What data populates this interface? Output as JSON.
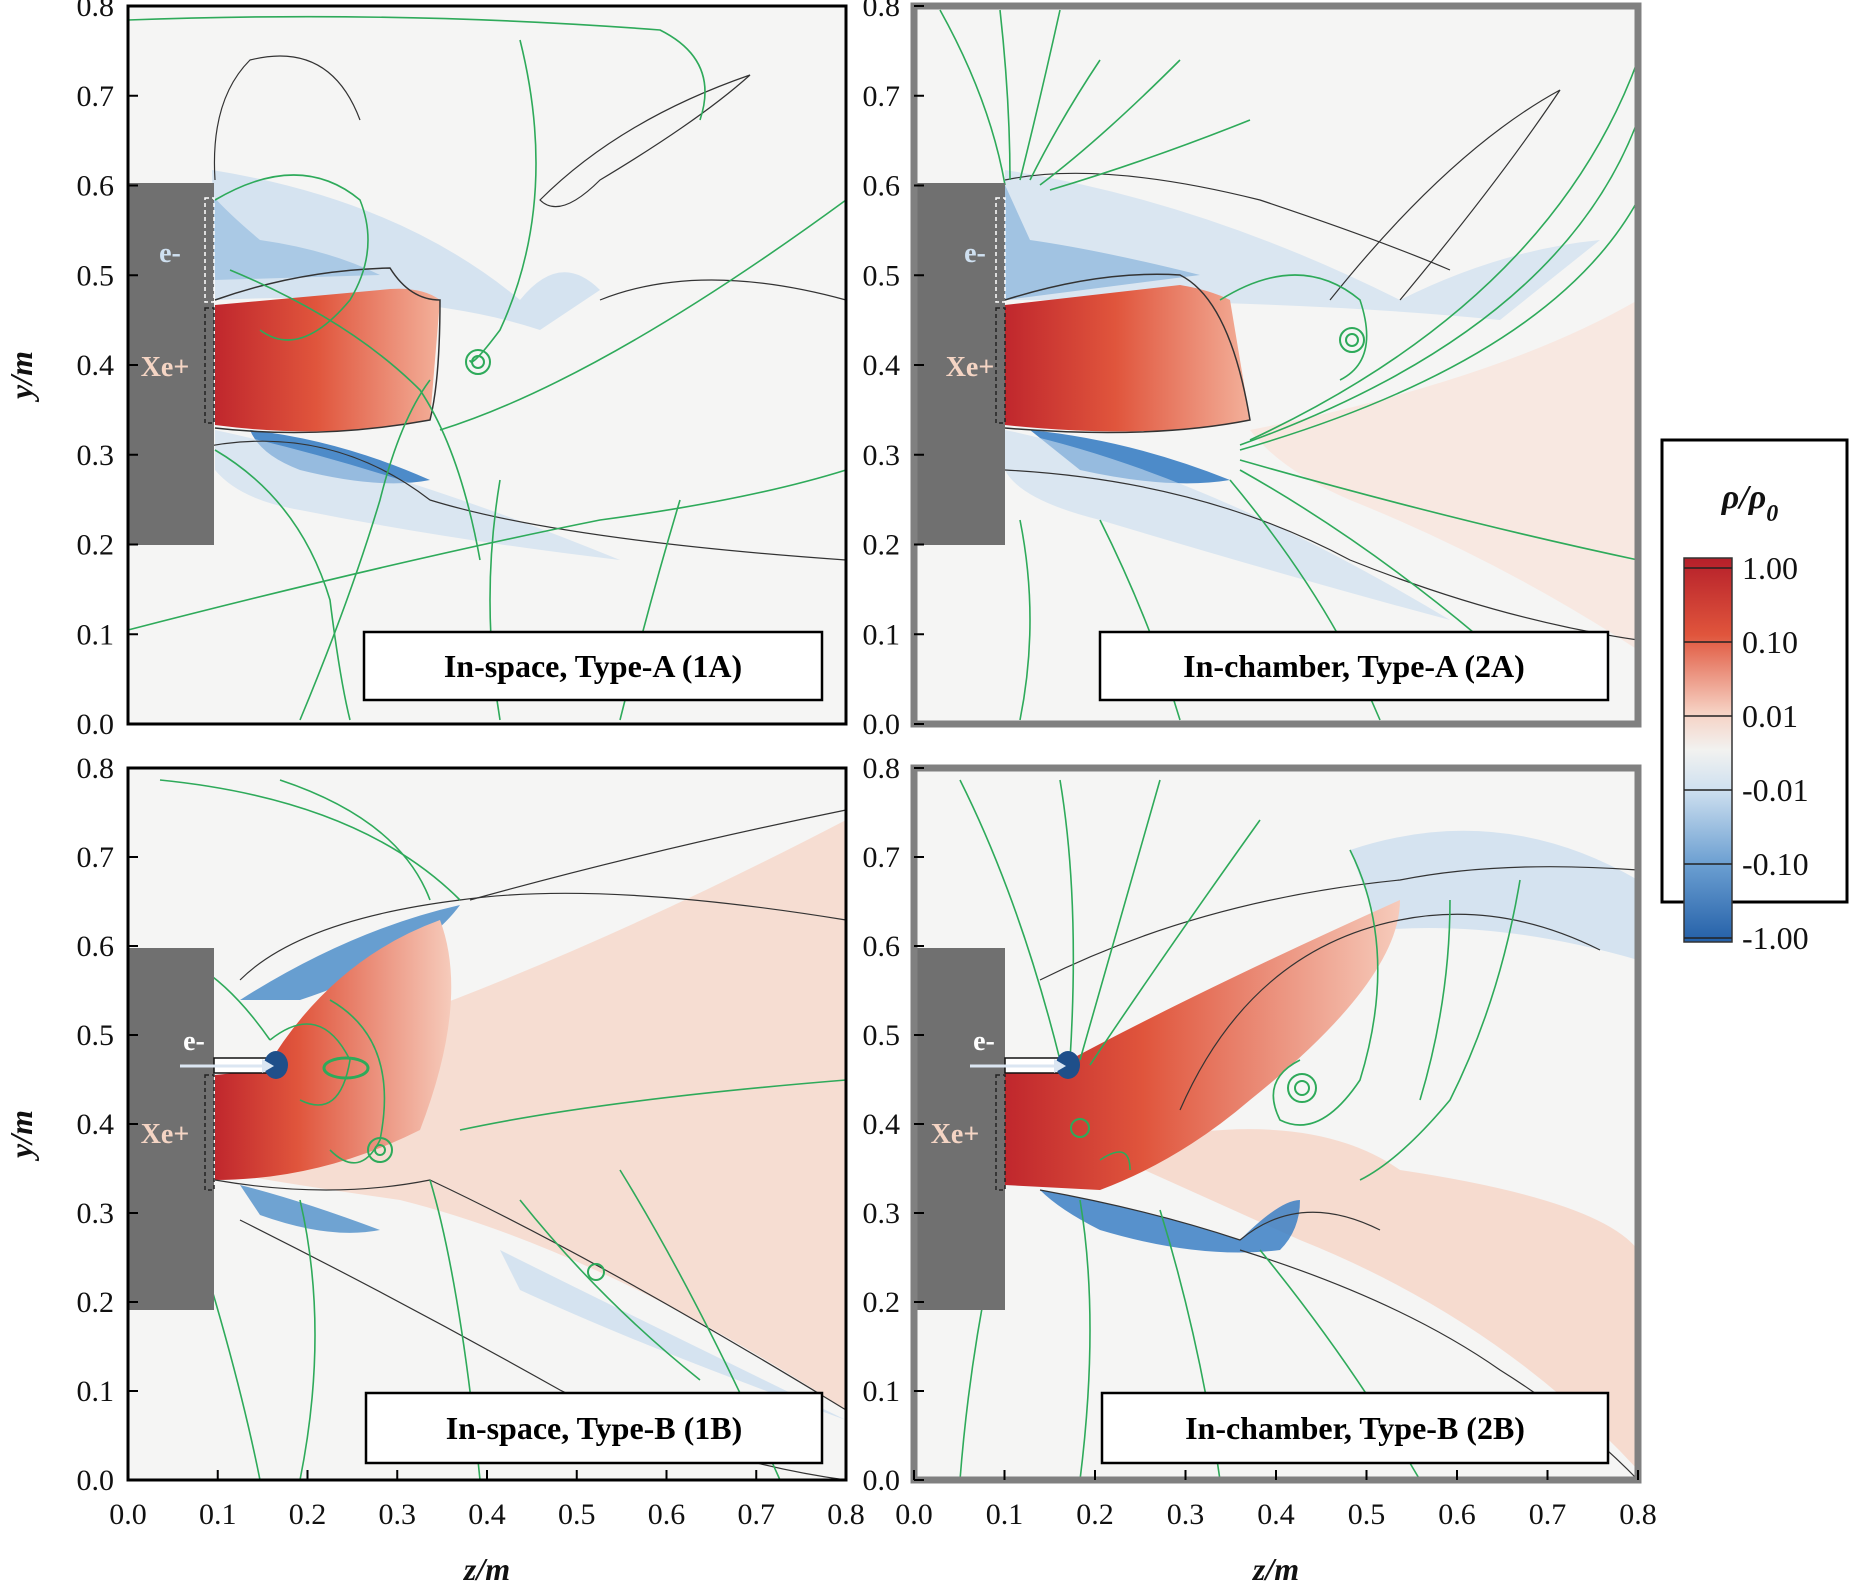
{
  "figure": {
    "x_axis_label": "z/m",
    "y_axis_label": "y/m",
    "x_ticks": [
      "0.0",
      "0.1",
      "0.2",
      "0.3",
      "0.4",
      "0.5",
      "0.6",
      "0.7",
      "0.8"
    ],
    "y_ticks": [
      "0.0",
      "0.1",
      "0.2",
      "0.3",
      "0.4",
      "0.5",
      "0.6",
      "0.7",
      "0.8"
    ],
    "panels": [
      {
        "id": "1A",
        "label": "In-space, Type-A (1A)",
        "electron_label": "e-",
        "ion_label": "Xe+",
        "frame_style": "black"
      },
      {
        "id": "2A",
        "label": "In-chamber, Type-A (2A)",
        "electron_label": "e-",
        "ion_label": "Xe+",
        "frame_style": "gray"
      },
      {
        "id": "1B",
        "label": "In-space, Type-B (1B)",
        "electron_label": "e-",
        "ion_label": "Xe+",
        "frame_style": "black"
      },
      {
        "id": "2B",
        "label": "In-chamber, Type-B (2B)",
        "electron_label": "e-",
        "ion_label": "Xe+",
        "frame_style": "gray"
      }
    ]
  },
  "colorbar": {
    "title": "ρ/ρ0",
    "title_main": "ρ/ρ",
    "title_sub": "0",
    "ticks": [
      "1.00",
      "0.10",
      "0.01",
      "-0.01",
      "-0.10",
      "-1.00"
    ],
    "colors": [
      "#c0272d",
      "#e8664a",
      "#f3b9a4",
      "#f2f2f0",
      "#c6dbef",
      "#2b6cb0"
    ]
  },
  "colors": {
    "streamline": "#2eaa5a",
    "contour": "#333333",
    "wall": "#707070",
    "positive": "#d9432f",
    "negative": "#3b7fc4",
    "frame_gray": "#808080"
  }
}
